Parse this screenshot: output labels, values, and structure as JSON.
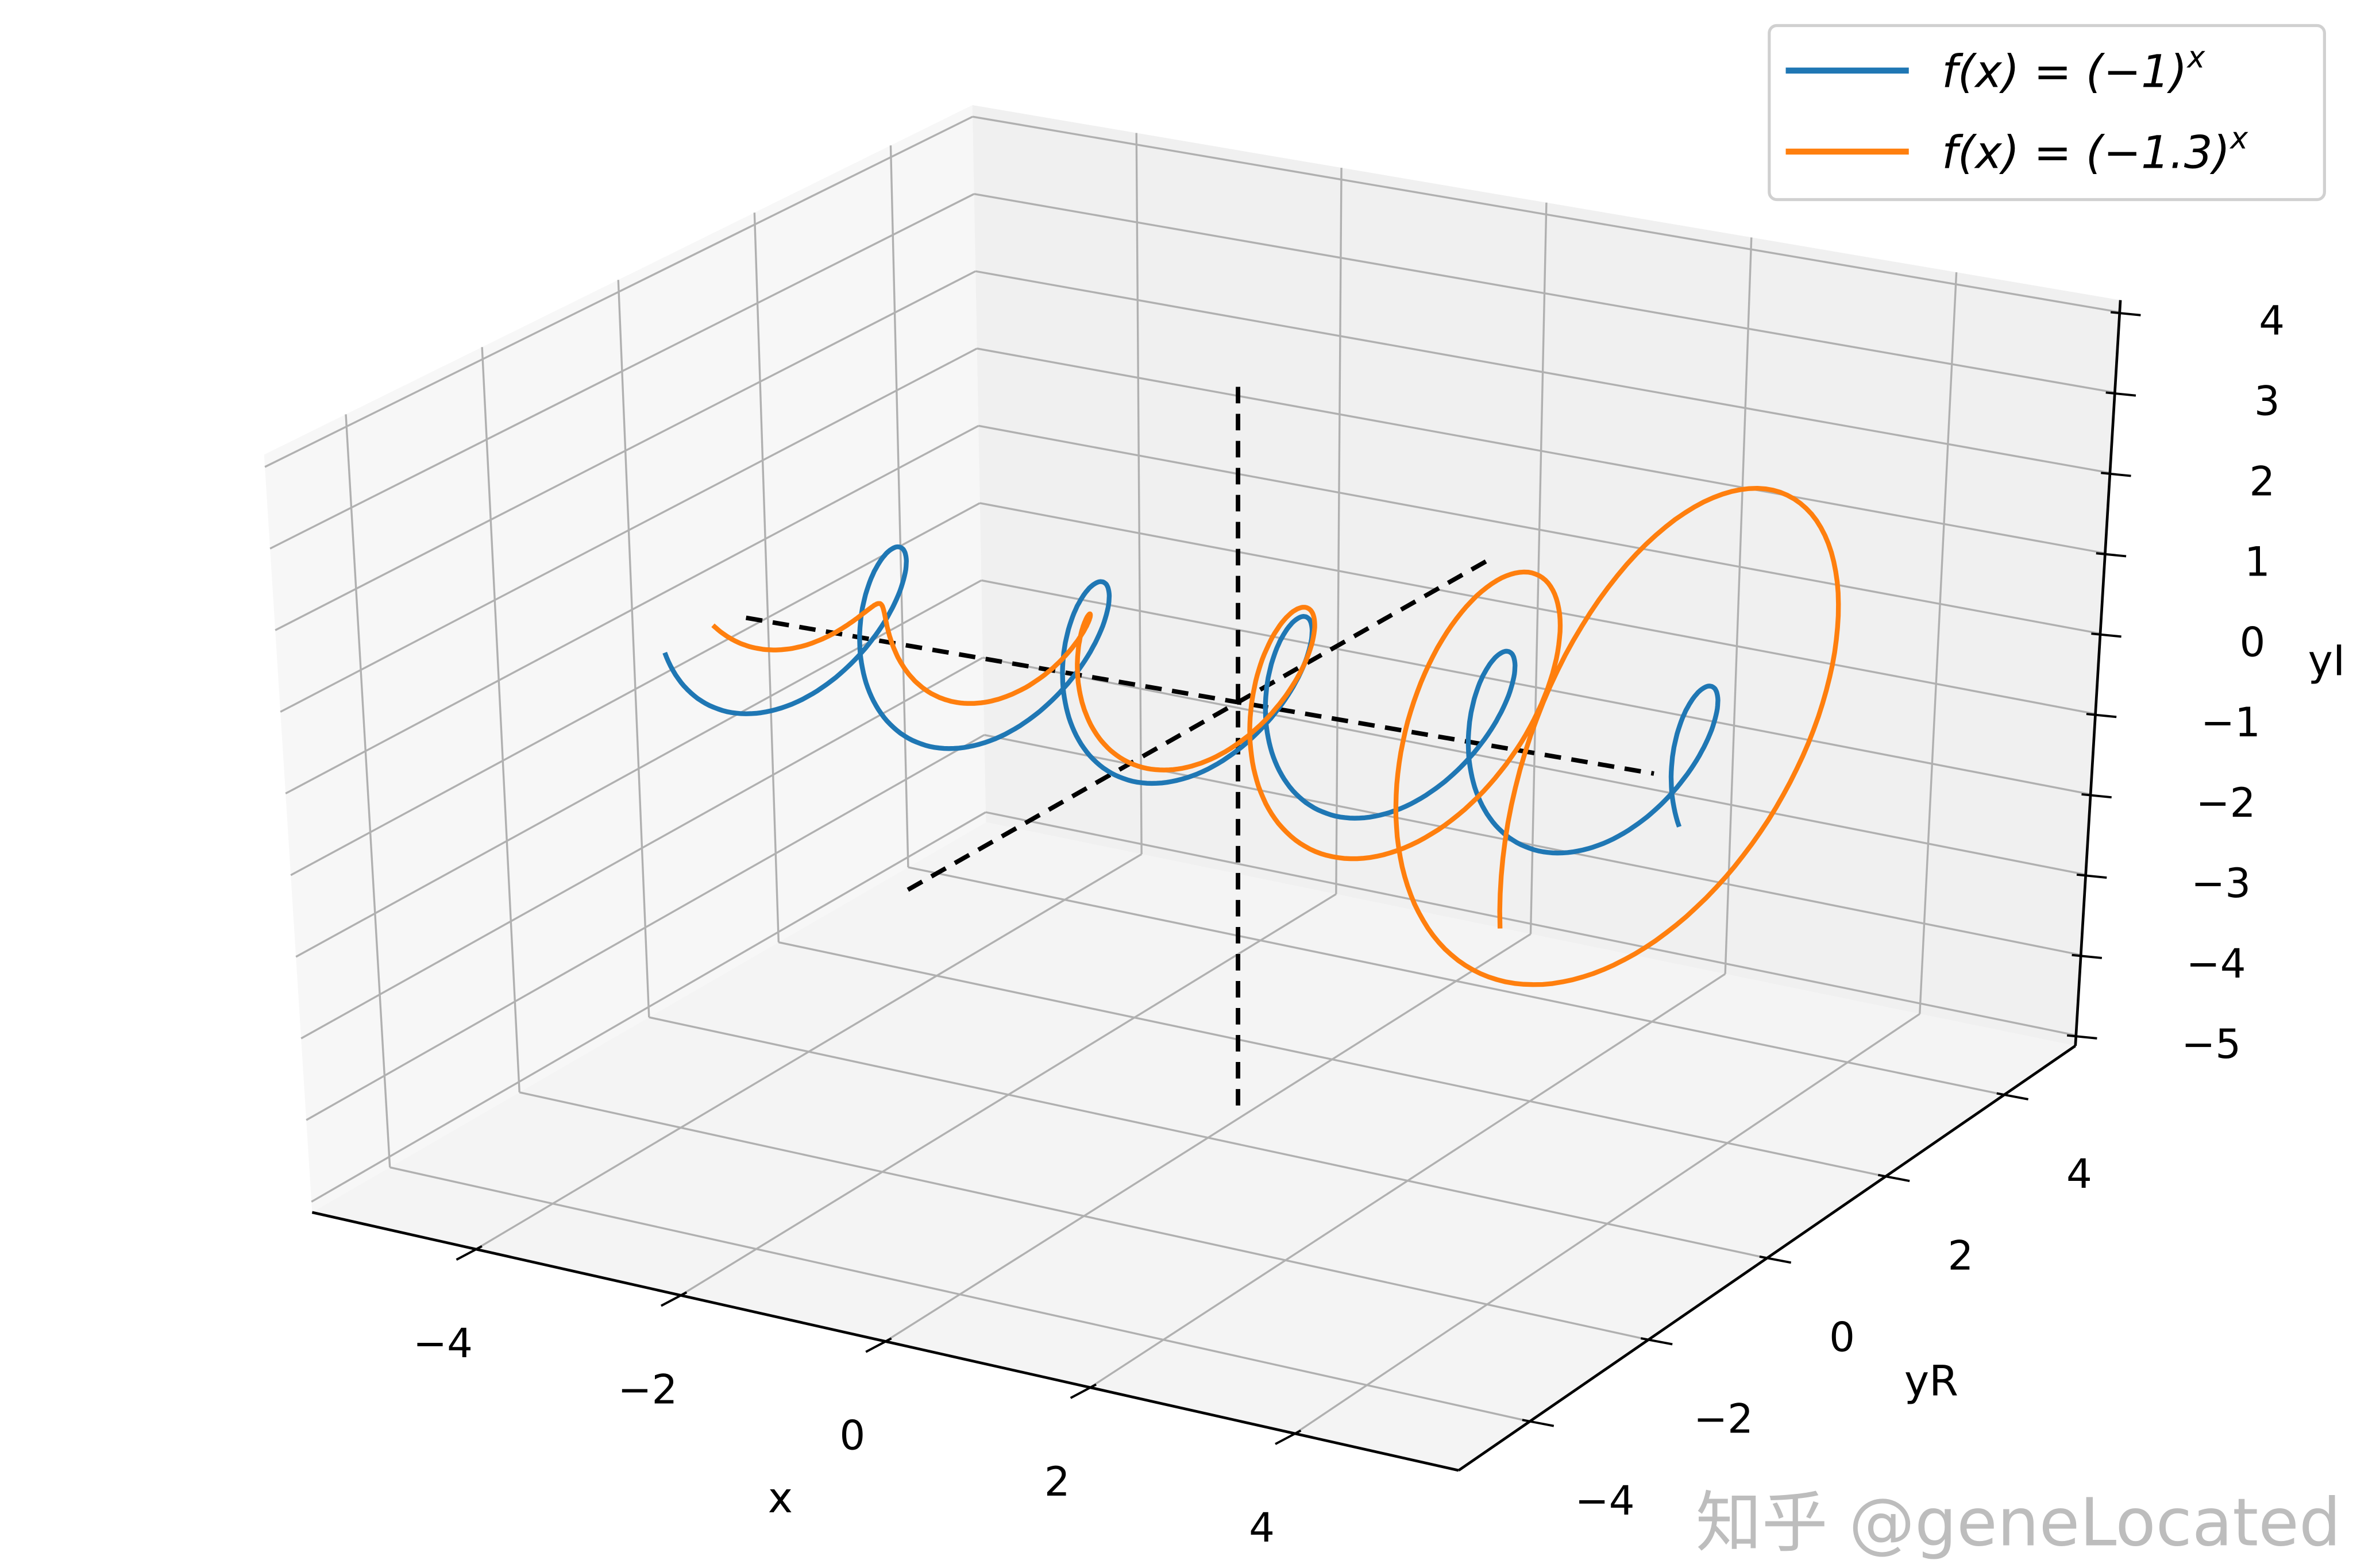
{
  "chart_data": {
    "type": "line3d",
    "title": "",
    "xlabel": "x",
    "ylabel": "yR",
    "zlabel": "yI",
    "xlim": [
      -5.6,
      5.6
    ],
    "ylim": [
      -5.2,
      5.2
    ],
    "zlim": [
      -5.13,
      4.15
    ],
    "x_ticks": [
      "−4",
      "−2",
      "0",
      "2",
      "4"
    ],
    "x_tick_values": [
      -4,
      -2,
      0,
      2,
      4
    ],
    "y_ticks": [
      "−4",
      "−2",
      "0",
      "2",
      "4"
    ],
    "y_tick_values": [
      -4,
      -2,
      0,
      2,
      4
    ],
    "z_ticks": [
      "−5",
      "−4",
      "−3",
      "−2",
      "−1",
      "0",
      "1",
      "2",
      "3",
      "4"
    ],
    "z_tick_values": [
      -5,
      -4,
      -3,
      -2,
      -1,
      0,
      1,
      2,
      3,
      4
    ],
    "grid": true,
    "legend_position": "top-right",
    "series": [
      {
        "name": "f(x) = (−1)^x",
        "base": -1,
        "x_range": [
          -5,
          5
        ],
        "color": "#1f77b4"
      },
      {
        "name": "f(x) = (−1.3)^x",
        "base": -1.3,
        "x_range": [
          -5,
          5
        ],
        "color": "#ff7f0e"
      }
    ],
    "reference_lines": [
      {
        "axis": "x",
        "range": [
          -4.85,
          4.1
        ],
        "style": "dashed",
        "color": "#000000"
      },
      {
        "axis": "yR",
        "range": [
          -5,
          3.8
        ],
        "style": "dashed",
        "color": "#000000"
      },
      {
        "axis": "yI",
        "range": [
          -4.8,
          3.8
        ],
        "style": "dashed",
        "color": "#000000"
      }
    ]
  },
  "legend": {
    "items": [
      {
        "label_main": "f(x) = (−1)",
        "label_sup": "x"
      },
      {
        "label_main": "f(x) = (−1.3)",
        "label_sup": "x"
      }
    ]
  },
  "watermark": "知乎 @geneLocated"
}
